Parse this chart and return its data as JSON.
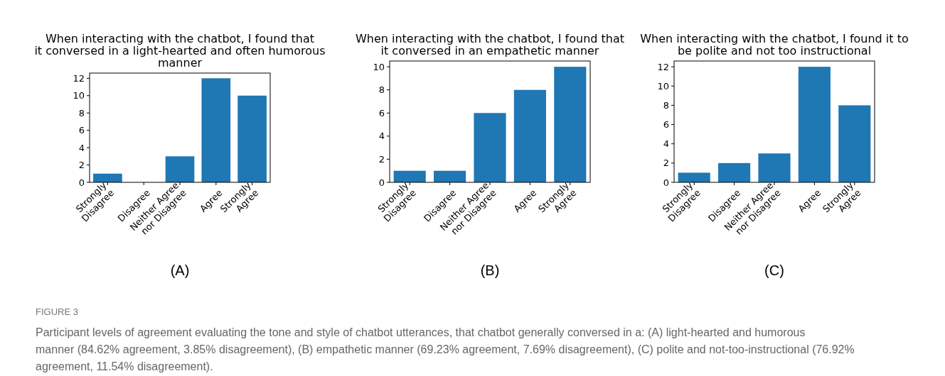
{
  "chart_data": [
    {
      "type": "bar",
      "title": "When interacting with the chatbot, I found that\nit conversed in a light-hearted and often humorous\nmanner",
      "categories": [
        "Strongly\nDisagree",
        "Disagree",
        "Neither Agree\nnor Disagree",
        "Agree",
        "Strongly\nAgree"
      ],
      "values": [
        1,
        0,
        3,
        12,
        10
      ],
      "color": "#1f77b4",
      "ylim": [
        0,
        12.6
      ],
      "yticks": [
        0,
        2,
        4,
        6,
        8,
        10,
        12
      ],
      "annotations": [
        "(A)"
      ]
    },
    {
      "type": "bar",
      "title": "When interacting with the chatbot, I found that\nit conversed in an empathetic manner",
      "categories": [
        "Strongly\nDisagree",
        "Disagree",
        "Neither Agree\nnor Disagree",
        "Agree",
        "Strongly\nAgree"
      ],
      "values": [
        1,
        1,
        6,
        8,
        10
      ],
      "color": "#1f77b4",
      "ylim": [
        0,
        10.5
      ],
      "yticks": [
        0,
        2,
        4,
        6,
        8,
        10
      ],
      "annotations": [
        "(B)"
      ]
    },
    {
      "type": "bar",
      "title": "When interacting with the chatbot, I found it to\nbe polite and not too instructional",
      "categories": [
        "Strongly\nDisagree",
        "Disagree",
        "Neither Agree\nnor Disagree",
        "Agree",
        "Strongly\nAgree"
      ],
      "values": [
        1,
        2,
        3,
        12,
        8
      ],
      "color": "#1f77b4",
      "ylim": [
        0,
        12.6
      ],
      "yticks": [
        0,
        2,
        4,
        6,
        8,
        10,
        12
      ],
      "annotations": [
        "(C)"
      ]
    },
    {
      "type": "other",
      "title": "FIGURE 3",
      "annotations": [
        "Participant levels of agreement evaluating the tone and style of chatbot utterances, that chatbot generally conversed in a: (A) light-hearted and humorous manner (84.62% agreement, 3.85% disagreement), (B) empathetic manner (69.23% agreement, 7.69% disagreement), (C) polite and not-too-instructional (76.92% agreement, 11.54% disagreement)."
      ]
    }
  ]
}
